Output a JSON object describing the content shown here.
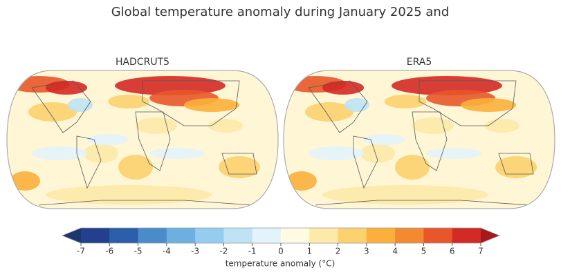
{
  "title": "Global temperature anomaly during January 2025 and",
  "panels": [
    {
      "title": "HADCRUT5"
    },
    {
      "title": "ERA5"
    }
  ],
  "colorbar": {
    "label": "temperature anomaly (°C)",
    "lim": [
      -7,
      7
    ],
    "ticks": [
      -7,
      -6,
      -5,
      -4,
      -3,
      -2,
      -1,
      0,
      1,
      2,
      3,
      4,
      5,
      6,
      7
    ],
    "extend": "both",
    "colors": [
      "#1c3670",
      "#23408e",
      "#2c5faa",
      "#4a8cc9",
      "#6bb0e0",
      "#94cdef",
      "#bfe3f5",
      "#e3f3fb",
      "#fffbe3",
      "#fde9a8",
      "#fcd26e",
      "#fbb03b",
      "#f48a30",
      "#e8562a",
      "#d42a25",
      "#a8171c"
    ]
  }
}
